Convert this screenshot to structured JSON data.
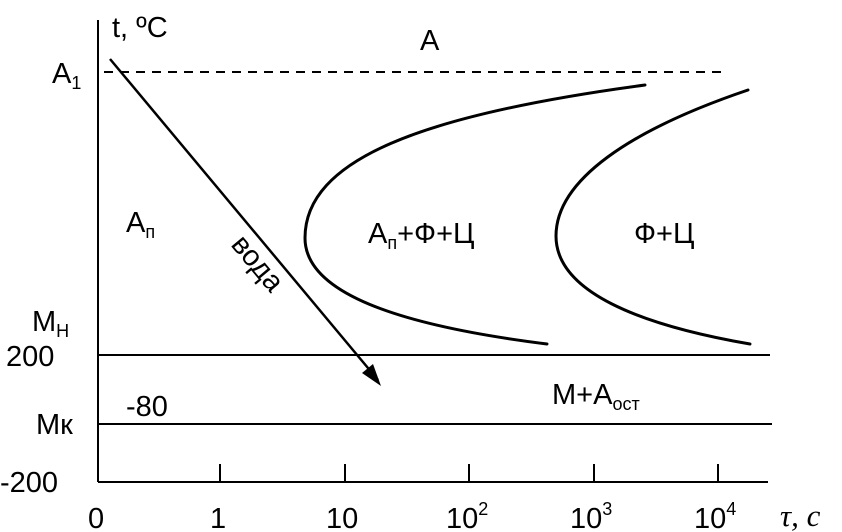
{
  "axes": {
    "y_label": "t, ºC",
    "x_label": "τ, с",
    "x_ticks": [
      "0",
      "1",
      "10",
      "10",
      "10",
      "10"
    ],
    "x_tick_exponents": [
      "",
      "",
      "",
      "2",
      "3",
      "4"
    ]
  },
  "y_labels": {
    "a1": {
      "main": "A",
      "sub": "1"
    },
    "mn": {
      "main": "М",
      "sub": "Н"
    },
    "t200": "200",
    "mk": "Мк",
    "tminus200": "-200"
  },
  "regions": {
    "austenite": "А",
    "undercooled": {
      "main": "А",
      "sub": "п"
    },
    "mixed": {
      "main": "А",
      "sub": "п",
      "rest": "+Ф+Ц"
    },
    "ferrite_cementite": "Ф+Ц",
    "martensite": {
      "main": "М+А",
      "sub": "ост"
    },
    "minus80": "-80"
  },
  "cooling": {
    "label": "вода"
  }
}
